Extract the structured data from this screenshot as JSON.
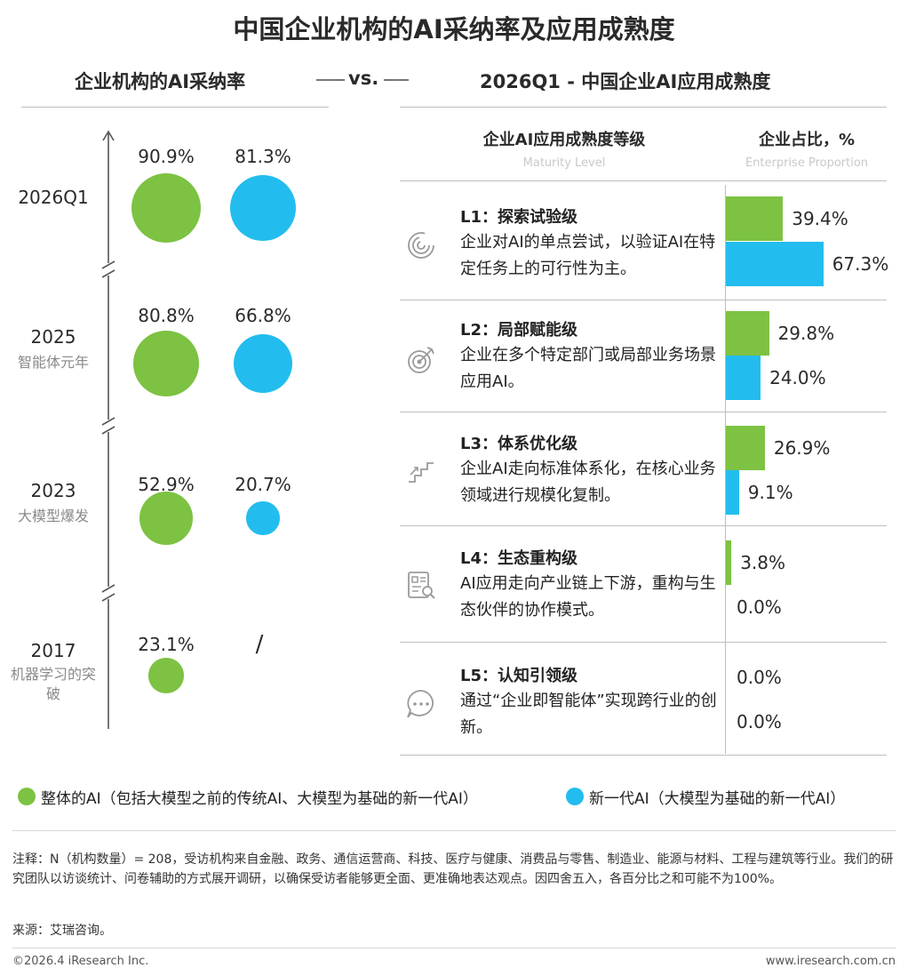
{
  "title": "中国企业机构的AI采纳率及应用成熟度",
  "left_subtitle": "企业机构的AI采纳率",
  "vs": "vs.",
  "right_subtitle": "2026Q1 - 中国企业AI应用成熟度",
  "colors": {
    "overall": "#7dc242",
    "new_gen": "#22bdee"
  },
  "adoption": {
    "years": [
      {
        "label": "2026Q1",
        "sub": "",
        "overall": 90.9,
        "overall_text": "90.9%",
        "new_gen": 81.3,
        "new_gen_text": "81.3%"
      },
      {
        "label": "2025",
        "sub": "智能体元年",
        "overall": 80.8,
        "overall_text": "80.8%",
        "new_gen": 66.8,
        "new_gen_text": "66.8%"
      },
      {
        "label": "2023",
        "sub": "大模型爆发",
        "overall": 52.9,
        "overall_text": "52.9%",
        "new_gen": 20.7,
        "new_gen_text": "20.7%"
      },
      {
        "label": "2017",
        "sub": "机器学习的突破",
        "overall": 23.1,
        "overall_text": "23.1%",
        "new_gen": null,
        "new_gen_text": "/"
      }
    ]
  },
  "maturity": {
    "header_level": "企业AI应用成熟度等级",
    "header_level_en": "Maturity Level",
    "header_prop": "企业占比，%",
    "header_prop_en": "Enterprise Proportion",
    "levels": [
      {
        "icon": "spiral-icon",
        "title": "L1：探索试验级",
        "desc": "企业对AI的单点尝试，以验证AI在特定任务上的可行性为主。"
      },
      {
        "icon": "target-icon",
        "title": "L2：局部赋能级",
        "desc": "企业在多个特定部门或局部业务场景应用AI。"
      },
      {
        "icon": "stairs-icon",
        "title": "L3：体系优化级",
        "desc": "企业AI走向标准体系化，在核心业务领域进行规模化复制。"
      },
      {
        "icon": "document-search-icon",
        "title": "L4：生态重构级",
        "desc": "AI应用走向产业链上下游，重构与生态伙伴的协作模式。"
      },
      {
        "icon": "chat-bubble-icon",
        "title": "L5：认知引领级",
        "desc": "通过“企业即智能体”实现跨行业的创新。"
      }
    ]
  },
  "chart_data": {
    "type": "bar",
    "title": "2026Q1 - 中国企业AI应用成熟度",
    "xlabel": "企业占比，%",
    "ylabel": "企业AI应用成熟度等级",
    "categories": [
      "L1",
      "L2",
      "L3",
      "L4",
      "L5"
    ],
    "series": [
      {
        "name": "整体的AI",
        "values": [
          39.4,
          29.8,
          26.9,
          3.8,
          0.0
        ],
        "labels": [
          "39.4%",
          "29.8%",
          "26.9%",
          "3.8%",
          "0.0%"
        ]
      },
      {
        "name": "新一代AI",
        "values": [
          67.3,
          24.0,
          9.1,
          0.0,
          0.0
        ],
        "labels": [
          "67.3%",
          "24.0%",
          "9.1%",
          "0.0%",
          "0.0%"
        ]
      }
    ],
    "xlim": [
      0,
      100
    ],
    "adoption_rate": {
      "type": "scatter",
      "title": "企业机构的AI采纳率",
      "categories": [
        "2026Q1",
        "2025",
        "2023",
        "2017"
      ],
      "series": [
        {
          "name": "整体的AI",
          "values": [
            90.9,
            80.8,
            52.9,
            23.1
          ]
        },
        {
          "name": "新一代AI",
          "values": [
            81.3,
            66.8,
            20.7,
            null
          ]
        }
      ]
    }
  },
  "legend": {
    "overall": "整体的AI（包括大模型之前的传统AI、大模型为基础的新一代AI）",
    "new_gen": "新一代AI（大模型为基础的新一代AI）"
  },
  "note": "注释：N（机构数量）= 208，受访机构来自金融、政务、通信运营商、科技、医疗与健康、消费品与零售、制造业、能源与材料、工程与建筑等行业。我们的研究团队以访谈统计、问卷辅助的方式展开调研，以确保受访者能够更全面、更准确地表达观点。因四舍五入，各百分比之和可能不为100%。",
  "source": "来源：艾瑞咨询。",
  "copyright": "©2026.4 iResearch Inc.",
  "website": "www.iresearch.com.cn"
}
